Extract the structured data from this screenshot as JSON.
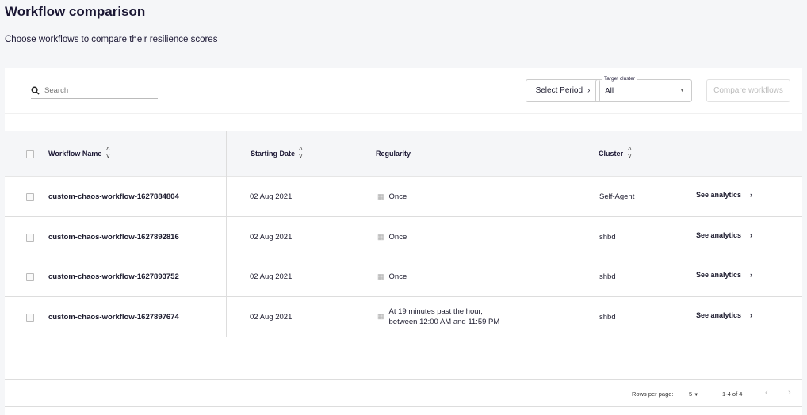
{
  "header": {
    "title": "Workflow comparison",
    "subtitle": "Choose workflows to compare their resilience scores"
  },
  "toolbar": {
    "search_placeholder": "Search",
    "select_period": "Select Period",
    "target_cluster_label": "Target cluster",
    "target_cluster_value": "All",
    "compare_button": "Compare workflows"
  },
  "table": {
    "columns": [
      "Workflow Name",
      "Starting Date",
      "Regularity",
      "Cluster"
    ],
    "rows": [
      {
        "name": "custom-chaos-workflow-1627884804",
        "date": "02 Aug 2021",
        "regularity": "Once",
        "regularity2": "",
        "cluster": "Self-Agent",
        "action": "See analytics"
      },
      {
        "name": "custom-chaos-workflow-1627892816",
        "date": "02 Aug 2021",
        "regularity": "Once",
        "regularity2": "",
        "cluster": "shbd",
        "action": "See analytics"
      },
      {
        "name": "custom-chaos-workflow-1627893752",
        "date": "02 Aug 2021",
        "regularity": "Once",
        "regularity2": "",
        "cluster": "shbd",
        "action": "See analytics"
      },
      {
        "name": "custom-chaos-workflow-1627897674",
        "date": "02 Aug 2021",
        "regularity": "At 19 minutes past the hour,",
        "regularity2": "between 12:00 AM and 11:59 PM",
        "cluster": "shbd",
        "action": "See analytics"
      }
    ]
  },
  "pagination": {
    "rows_per_page_label": "Rows per page:",
    "rows_per_page": "5",
    "range": "1-4 of 4"
  }
}
